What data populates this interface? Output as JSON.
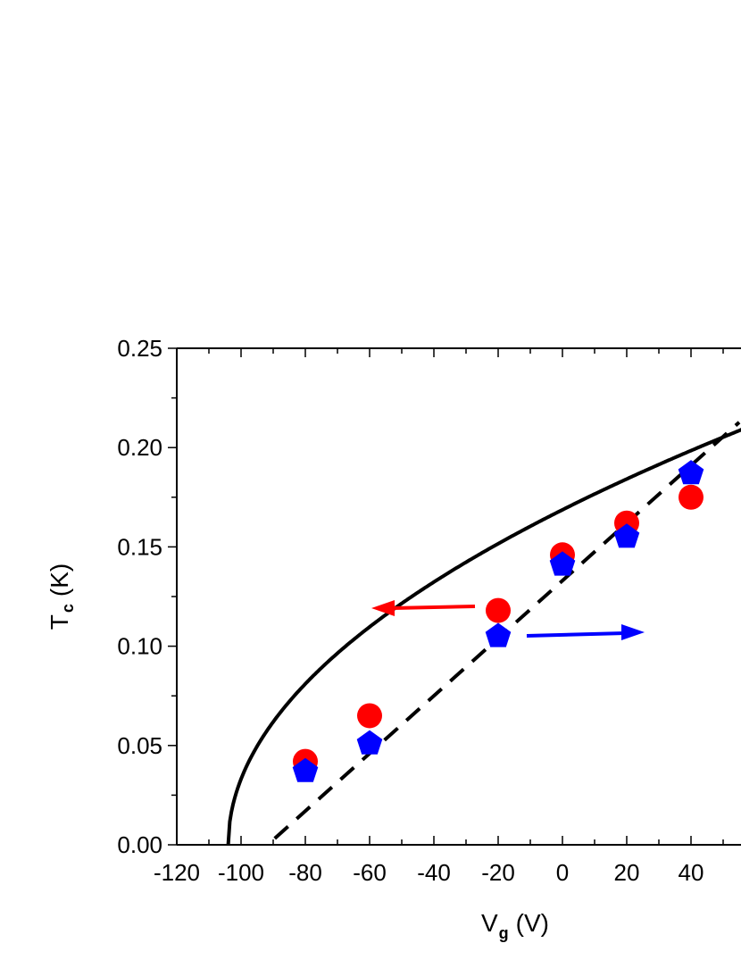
{
  "chart_data": {
    "type": "scatter",
    "xlabel": {
      "main": "V",
      "sub": "g",
      "unit": "(V)"
    },
    "ylabel": {
      "main": "T",
      "sub": "c",
      "unit": "(K)"
    },
    "xlim": [
      -120,
      55
    ],
    "ylim": [
      0,
      0.25
    ],
    "x_ticks": [
      -120,
      -100,
      -80,
      -60,
      -40,
      -20,
      0,
      20,
      40
    ],
    "x_tick_labels": [
      "-120",
      "-100",
      "-80",
      "-60",
      "-40",
      "-20",
      "0",
      "20",
      "40"
    ],
    "y_ticks": [
      0,
      0.05,
      0.1,
      0.15,
      0.2,
      0.25
    ],
    "y_tick_labels": [
      "0.00",
      "0.05",
      "0.10",
      "0.15",
      "0.20",
      "0.25"
    ],
    "grid": false,
    "series": [
      {
        "marker": "circle",
        "color": "#ff0000",
        "axis": "left",
        "points": [
          {
            "x": -80,
            "y": 0.042
          },
          {
            "x": -60,
            "y": 0.065
          },
          {
            "x": -20,
            "y": 0.118
          },
          {
            "x": 0,
            "y": 0.146
          },
          {
            "x": 20,
            "y": 0.162
          },
          {
            "x": 40,
            "y": 0.175
          }
        ]
      },
      {
        "marker": "pentagon",
        "color": "#0000ff",
        "axis": "right",
        "points": [
          {
            "x": -80,
            "y": 0.037
          },
          {
            "x": -60,
            "y": 0.051
          },
          {
            "x": -20,
            "y": 0.105
          },
          {
            "x": 0,
            "y": 0.141
          },
          {
            "x": 20,
            "y": 0.155
          },
          {
            "x": 40,
            "y": 0.187
          }
        ]
      }
    ],
    "fits": [
      {
        "style": "solid",
        "color": "#000000",
        "form": "sqrt",
        "x0": -104,
        "amplitude": 0.01654
      },
      {
        "style": "dashed",
        "color": "#000000",
        "form": "linear",
        "slope": 0.00145,
        "intercept": 0.133,
        "x_range": [
          -110,
          55
        ]
      }
    ],
    "annotations": [
      {
        "type": "arrow",
        "direction": "left",
        "color": "#ff0000",
        "meaning": "red circles use left axis"
      },
      {
        "type": "arrow",
        "direction": "right",
        "color": "#0000ff",
        "meaning": "blue pentagons use right axis"
      }
    ]
  }
}
